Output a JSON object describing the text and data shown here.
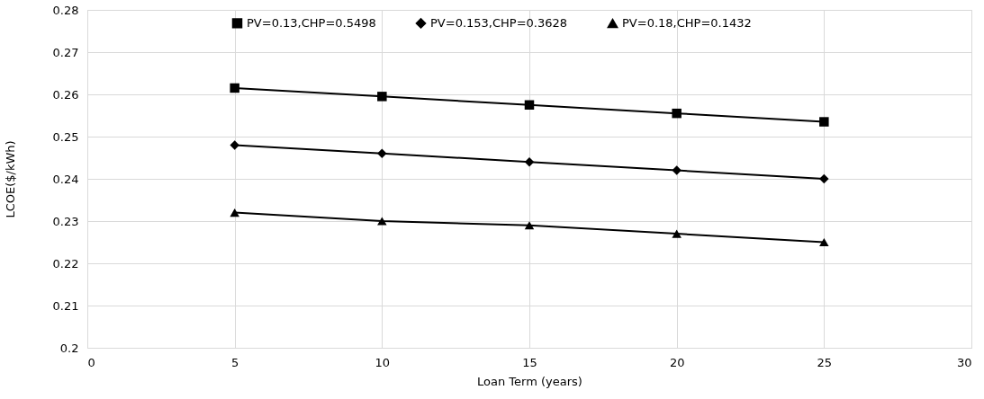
{
  "chart_data": {
    "type": "line",
    "xlabel": "Loan Term (years)",
    "ylabel": "LCOE($/kWh)",
    "x": [
      5,
      10,
      15,
      20,
      25
    ],
    "series": [
      {
        "name": "PV=0.13,CHP=0.5498",
        "color": "#000000",
        "marker": "square",
        "values": [
          0.2615,
          0.2595,
          0.2575,
          0.2555,
          0.2535
        ]
      },
      {
        "name": "PV=0.153,CHP=0.3628",
        "color": "#000000",
        "marker": "diamond",
        "values": [
          0.248,
          0.246,
          0.244,
          0.242,
          0.24
        ]
      },
      {
        "name": "PV=0.18,CHP=0.1432",
        "color": "#000000",
        "marker": "triangle",
        "values": [
          0.232,
          0.23,
          0.229,
          0.227,
          0.225
        ]
      }
    ],
    "xlim": [
      0,
      30
    ],
    "xticks": [
      0,
      5,
      10,
      15,
      20,
      25,
      30
    ],
    "ylim": [
      0.2,
      0.28
    ],
    "yticks": [
      0.2,
      0.21,
      0.22,
      0.23,
      0.24,
      0.25,
      0.26,
      0.27,
      0.28
    ],
    "grid": true,
    "legend": "top",
    "line_style": "solid"
  }
}
